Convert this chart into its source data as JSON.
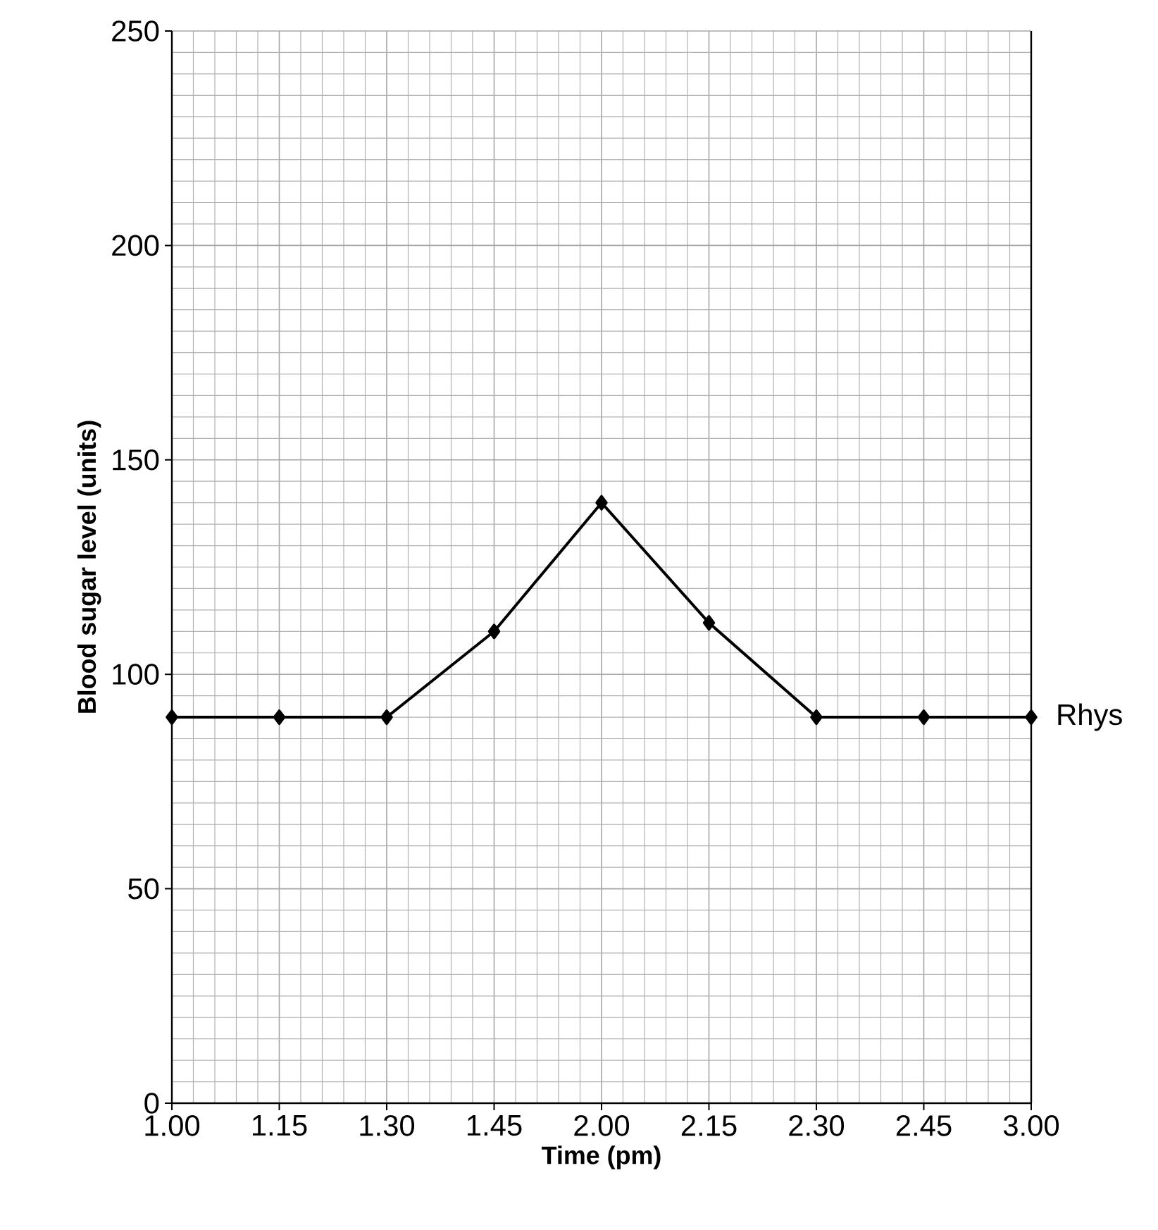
{
  "chart_data": {
    "type": "line",
    "xlabel": "Time (pm)",
    "ylabel": "Blood sugar level (units)",
    "categories": [
      "1.00",
      "1.15",
      "1.30",
      "1.45",
      "2.00",
      "2.15",
      "2.30",
      "2.45",
      "3.00"
    ],
    "series": [
      {
        "name": "Rhys",
        "color": "#000000",
        "values": [
          90,
          90,
          90,
          110,
          140,
          112,
          90,
          90,
          90
        ]
      }
    ],
    "ylim": [
      0,
      250
    ],
    "yticks": [
      0,
      50,
      100,
      150,
      200,
      250
    ],
    "grid": true,
    "marker": "diamond",
    "line_style": "solid"
  }
}
